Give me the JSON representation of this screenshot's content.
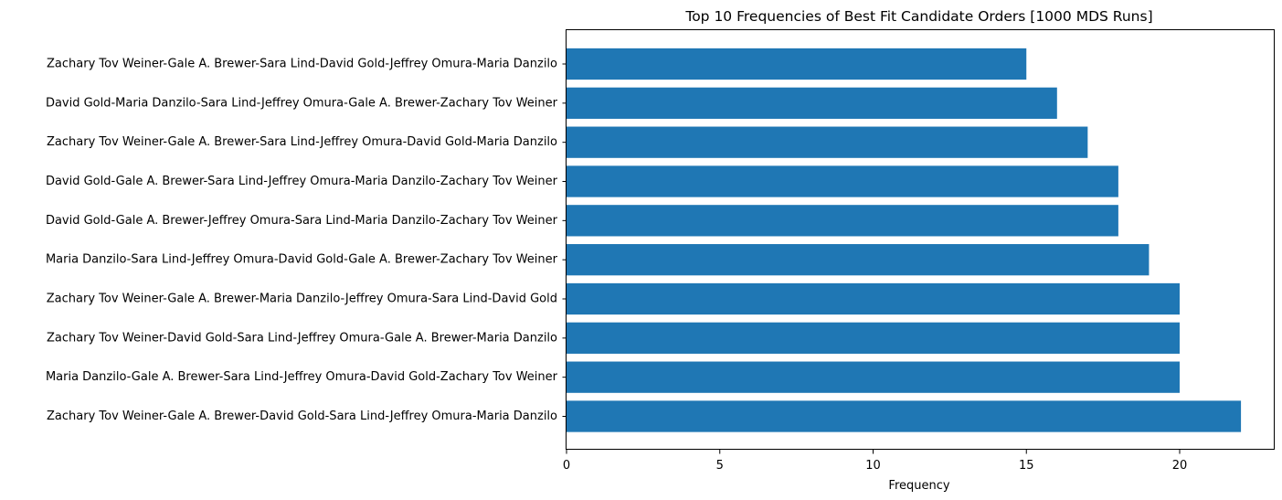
{
  "chart_data": {
    "type": "bar",
    "orientation": "horizontal",
    "title": "Top 10 Frequencies of Best Fit Candidate Orders [1000 MDS Runs]",
    "xlabel": "Frequency",
    "ylabel": "",
    "xlim": [
      0,
      23.1
    ],
    "xticks": [
      0,
      5,
      10,
      15,
      20
    ],
    "grid": false,
    "bar_color": "#1f77b4",
    "categories": [
      "Zachary Tov Weiner-Gale A. Brewer-David Gold-Sara Lind-Jeffrey Omura-Maria Danzilo",
      "Maria Danzilo-Gale A. Brewer-Sara Lind-Jeffrey Omura-David Gold-Zachary Tov Weiner",
      "Zachary Tov Weiner-David Gold-Sara Lind-Jeffrey Omura-Gale A. Brewer-Maria Danzilo",
      "Zachary Tov Weiner-Gale A. Brewer-Maria Danzilo-Jeffrey Omura-Sara Lind-David Gold",
      "Maria Danzilo-Sara Lind-Jeffrey Omura-David Gold-Gale A. Brewer-Zachary Tov Weiner",
      "David Gold-Gale A. Brewer-Jeffrey Omura-Sara Lind-Maria Danzilo-Zachary Tov Weiner",
      "David Gold-Gale A. Brewer-Sara Lind-Jeffrey Omura-Maria Danzilo-Zachary Tov Weiner",
      "Zachary Tov Weiner-Gale A. Brewer-Sara Lind-Jeffrey Omura-David Gold-Maria Danzilo",
      "David Gold-Maria Danzilo-Sara Lind-Jeffrey Omura-Gale A. Brewer-Zachary Tov Weiner",
      "Zachary Tov Weiner-Gale A. Brewer-Sara Lind-David Gold-Jeffrey Omura-Maria Danzilo"
    ],
    "values": [
      22,
      20,
      20,
      20,
      19,
      18,
      18,
      17,
      16,
      15
    ]
  }
}
